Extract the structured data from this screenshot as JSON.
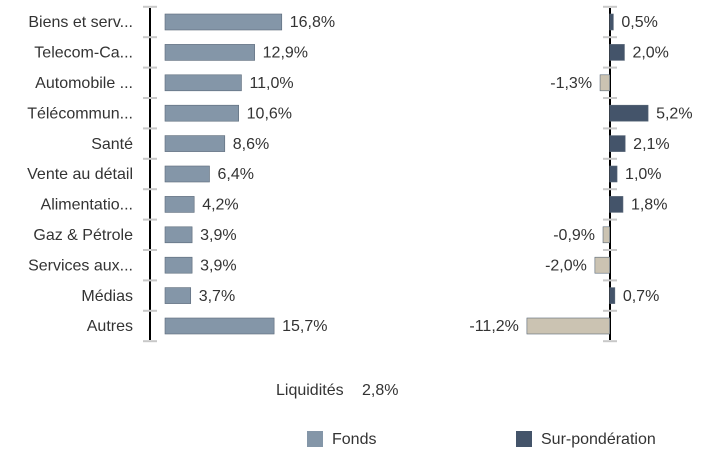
{
  "chart_data": [
    {
      "type": "bar",
      "orientation": "horizontal",
      "categories": [
        "Biens et serv...",
        "Telecom-Ca...",
        "Automobile ...",
        "Télécommun...",
        "Santé",
        "Vente au détail",
        "Alimentatio...",
        "Gaz & Pétrole",
        "Services aux...",
        "Médias",
        "Autres"
      ],
      "series": [
        {
          "name": "Fonds",
          "color": "#8496a8",
          "values": [
            16.8,
            12.9,
            11.0,
            10.6,
            8.6,
            6.4,
            4.2,
            3.9,
            3.9,
            3.7,
            15.7
          ],
          "value_labels": [
            "16,8%",
            "12,9%",
            "11,0%",
            "10,6%",
            "8,6%",
            "6,4%",
            "4,2%",
            "3,9%",
            "3,9%",
            "3,7%",
            "15,7%"
          ]
        }
      ],
      "xlim": [
        0,
        20
      ]
    },
    {
      "type": "bar",
      "orientation": "horizontal",
      "series": [
        {
          "name": "Sur-pondération",
          "color": "#44546a",
          "negative_color": "#cbc3b2",
          "values": [
            0.5,
            2.0,
            -1.3,
            5.2,
            2.1,
            1.0,
            1.8,
            -0.9,
            -2.0,
            0.7,
            -11.2
          ],
          "value_labels": [
            "0,5%",
            "2,0%",
            "-1,3%",
            "5,2%",
            "2,1%",
            "1,0%",
            "1,8%",
            "-0,9%",
            "-2,0%",
            "0,7%",
            "-11,2%"
          ]
        }
      ],
      "xlim": [
        -12,
        6
      ]
    }
  ],
  "cash": {
    "label": "Liquidités",
    "text": "2,8%"
  }
}
